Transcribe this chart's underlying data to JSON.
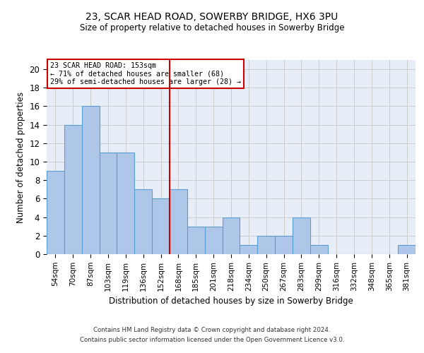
{
  "title": "23, SCAR HEAD ROAD, SOWERBY BRIDGE, HX6 3PU",
  "subtitle": "Size of property relative to detached houses in Sowerby Bridge",
  "xlabel": "Distribution of detached houses by size in Sowerby Bridge",
  "ylabel": "Number of detached properties",
  "bar_color": "#aec6e8",
  "bar_edge_color": "#5a9fd4",
  "bin_labels": [
    "54sqm",
    "70sqm",
    "87sqm",
    "103sqm",
    "119sqm",
    "136sqm",
    "152sqm",
    "168sqm",
    "185sqm",
    "201sqm",
    "218sqm",
    "234sqm",
    "250sqm",
    "267sqm",
    "283sqm",
    "299sqm",
    "316sqm",
    "332sqm",
    "348sqm",
    "365sqm",
    "381sqm"
  ],
  "values": [
    9,
    14,
    16,
    11,
    11,
    7,
    6,
    7,
    3,
    3,
    4,
    1,
    2,
    2,
    4,
    1,
    0,
    0,
    0,
    0,
    1
  ],
  "ylim": [
    0,
    21
  ],
  "yticks": [
    0,
    2,
    4,
    6,
    8,
    10,
    12,
    14,
    16,
    18,
    20
  ],
  "property_line_x": 6.5,
  "property_line_label": "23 SCAR HEAD ROAD: 153sqm",
  "annotation_line1": "← 71% of detached houses are smaller (68)",
  "annotation_line2": "29% of semi-detached houses are larger (28) →",
  "annotation_box_color": "#ffffff",
  "annotation_box_edge": "#cc0000",
  "vline_color": "#cc0000",
  "grid_color": "#cccccc",
  "background_color": "#e8eef7",
  "footer_line1": "Contains HM Land Registry data © Crown copyright and database right 2024.",
  "footer_line2": "Contains public sector information licensed under the Open Government Licence v3.0."
}
